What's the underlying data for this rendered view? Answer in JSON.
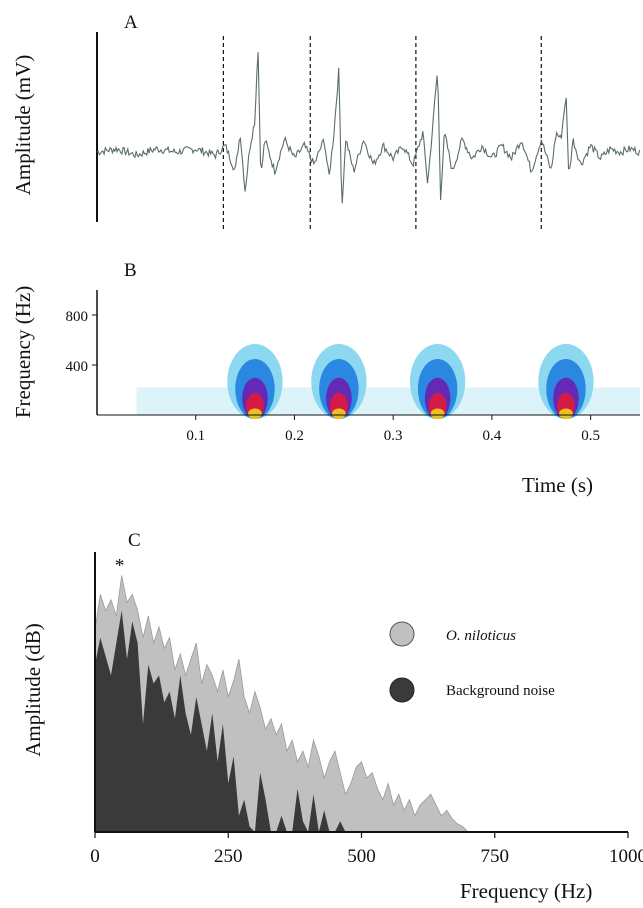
{
  "panels": {
    "a": {
      "label": "A"
    },
    "b": {
      "label": "B"
    },
    "c": {
      "label": "C",
      "peak_marker": "*"
    }
  },
  "chart_data": [
    {
      "type": "line",
      "panel": "A",
      "ylabel": "Amplitude (mV)",
      "xlim": [
        0,
        0.55
      ],
      "pulse_times_s": [
        0.16,
        0.245,
        0.345,
        0.475
      ],
      "pulse_bounds_s": [
        0.128,
        0.216,
        0.323,
        0.45
      ],
      "series": [
        {
          "values_x": [
            0.0,
            0.02,
            0.04,
            0.06,
            0.08,
            0.1,
            0.12,
            0.13,
            0.14,
            0.145,
            0.15,
            0.155,
            0.16,
            0.163,
            0.166,
            0.17,
            0.18,
            0.19,
            0.2,
            0.21,
            0.22,
            0.23,
            0.235,
            0.24,
            0.245,
            0.248,
            0.252,
            0.26,
            0.27,
            0.28,
            0.29,
            0.3,
            0.31,
            0.32,
            0.33,
            0.335,
            0.34,
            0.345,
            0.348,
            0.352,
            0.36,
            0.37,
            0.38,
            0.39,
            0.4,
            0.41,
            0.42,
            0.43,
            0.44,
            0.45,
            0.46,
            0.465,
            0.47,
            0.475,
            0.478,
            0.482,
            0.49,
            0.5,
            0.51,
            0.52,
            0.53,
            0.54,
            0.55
          ],
          "values_y": [
            0.0,
            0.05,
            -0.05,
            0.05,
            0.0,
            0.05,
            -0.05,
            0.1,
            -0.3,
            0.3,
            -0.6,
            0.1,
            0.5,
            1.7,
            -0.4,
            0.2,
            -0.3,
            0.2,
            -0.1,
            0.1,
            -0.2,
            0.2,
            -0.4,
            0.3,
            1.3,
            -0.9,
            0.2,
            -0.3,
            0.2,
            -0.2,
            0.1,
            -0.1,
            0.1,
            -0.2,
            0.3,
            -0.5,
            0.4,
            1.3,
            -0.7,
            0.3,
            -0.3,
            0.2,
            -0.1,
            0.1,
            -0.1,
            0.1,
            -0.1,
            0.2,
            -0.3,
            0.2,
            -0.3,
            0.3,
            0.2,
            0.9,
            -0.4,
            0.2,
            -0.2,
            0.1,
            -0.1,
            0.05,
            0.0,
            0.05,
            0.0
          ]
        }
      ]
    },
    {
      "type": "heatmap",
      "panel": "B",
      "ylabel": "Frequency (Hz)",
      "xlabel": "Time (s)",
      "xlim": [
        0,
        0.55
      ],
      "ylim": [
        0,
        1000
      ],
      "x_ticks": [
        "0.1",
        "0.2",
        "0.3",
        "0.4",
        "0.5"
      ],
      "x_tick_values": [
        0.1,
        0.2,
        0.3,
        0.4,
        0.5
      ],
      "y_ticks": [
        "400",
        "800"
      ],
      "y_tick_values": [
        400,
        800
      ],
      "energy_blobs": [
        {
          "t": 0.16,
          "f_max": 600
        },
        {
          "t": 0.245,
          "f_max": 600
        },
        {
          "t": 0.345,
          "f_max": 600
        },
        {
          "t": 0.475,
          "f_max": 600
        }
      ]
    },
    {
      "type": "area",
      "panel": "C",
      "ylabel": "Amplitude (dB)",
      "xlabel": "Frequency (Hz)",
      "xlim": [
        0,
        1000
      ],
      "x_ticks": [
        "0",
        "250",
        "500",
        "750",
        "1000"
      ],
      "x_tick_values": [
        0,
        250,
        500,
        750,
        1000
      ],
      "ylim": [
        0,
        100
      ],
      "peak_frequency": 50,
      "series": [
        {
          "name": "O. niloticus",
          "color": "#c0c0c0",
          "x": [
            0,
            10,
            20,
            30,
            40,
            50,
            60,
            70,
            80,
            90,
            100,
            110,
            120,
            130,
            140,
            150,
            160,
            170,
            180,
            190,
            200,
            210,
            220,
            230,
            240,
            250,
            260,
            270,
            280,
            290,
            300,
            310,
            320,
            330,
            340,
            350,
            360,
            370,
            380,
            390,
            400,
            410,
            420,
            430,
            440,
            450,
            460,
            470,
            480,
            490,
            500,
            510,
            520,
            530,
            540,
            550,
            560,
            570,
            580,
            590,
            600,
            610,
            620,
            630,
            640,
            650,
            660,
            670,
            680,
            690,
            700
          ],
          "values": [
            75,
            88,
            82,
            86,
            80,
            95,
            85,
            88,
            82,
            72,
            80,
            70,
            76,
            68,
            72,
            60,
            66,
            58,
            64,
            70,
            55,
            62,
            58,
            52,
            60,
            50,
            56,
            64,
            50,
            44,
            52,
            46,
            38,
            42,
            36,
            40,
            30,
            34,
            26,
            30,
            24,
            34,
            28,
            20,
            26,
            30,
            22,
            14,
            18,
            24,
            26,
            20,
            22,
            16,
            12,
            18,
            10,
            14,
            8,
            12,
            6,
            10,
            12,
            14,
            10,
            6,
            8,
            5,
            3,
            2,
            0
          ]
        },
        {
          "name": "Background noise",
          "color": "#3a3a3a",
          "x": [
            0,
            10,
            20,
            30,
            40,
            50,
            60,
            70,
            80,
            90,
            100,
            110,
            120,
            130,
            140,
            150,
            160,
            170,
            180,
            190,
            200,
            210,
            220,
            230,
            240,
            250,
            260,
            270,
            280,
            290,
            300,
            310,
            320,
            330,
            340,
            350,
            360,
            370,
            380,
            390,
            400,
            410,
            420,
            430,
            440,
            450,
            460,
            470
          ],
          "values": [
            62,
            72,
            65,
            58,
            70,
            82,
            64,
            78,
            70,
            40,
            62,
            55,
            58,
            48,
            52,
            42,
            58,
            44,
            36,
            50,
            40,
            30,
            44,
            26,
            40,
            18,
            28,
            6,
            12,
            2,
            0,
            22,
            12,
            0,
            0,
            6,
            0,
            0,
            16,
            4,
            0,
            14,
            0,
            8,
            0,
            0,
            4,
            0
          ]
        }
      ],
      "legend": [
        {
          "label": "O. niloticus",
          "color": "#c0c0c0",
          "italic": true
        },
        {
          "label": "Background noise",
          "color": "#3a3a3a",
          "italic": false
        }
      ]
    }
  ]
}
